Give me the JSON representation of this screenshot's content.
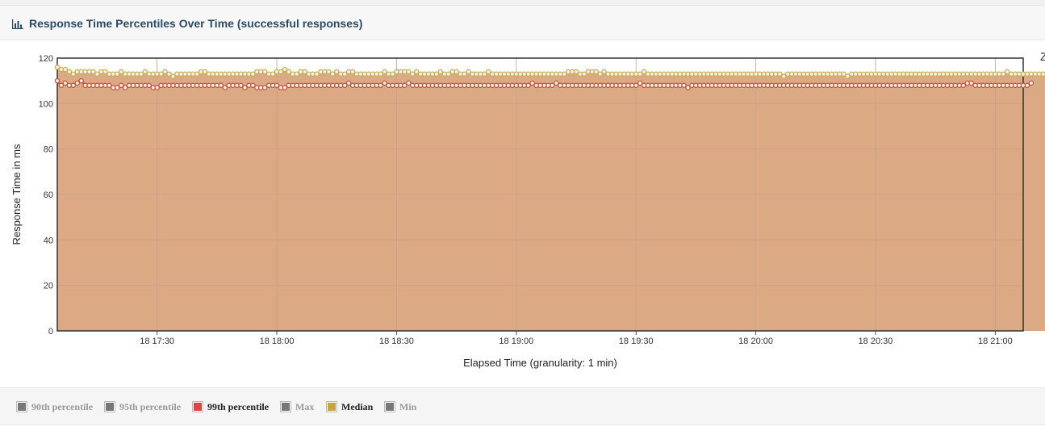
{
  "panel": {
    "title": "Response Time Percentiles Over Time (successful responses)",
    "icon": "bar-chart-icon",
    "cut_glyph": "Z"
  },
  "colors": {
    "plot_fill": "#dba983",
    "grid": "#c8a286",
    "line_99th": "#c9533f",
    "line_median": "#c9ae55",
    "marker_fill": "#f4f1ea"
  },
  "legend": [
    {
      "label": "90th percentile",
      "color": "#777777",
      "active": false
    },
    {
      "label": "95th percentile",
      "color": "#777777",
      "active": false
    },
    {
      "label": "99th percentile",
      "color": "#dd4444",
      "active": true
    },
    {
      "label": "Max",
      "color": "#777777",
      "active": false
    },
    {
      "label": "Median",
      "color": "#c9a43c",
      "active": true
    },
    {
      "label": "Min",
      "color": "#777777",
      "active": false
    }
  ],
  "chart_data": {
    "type": "area",
    "title": "",
    "xlabel": "Elapsed Time (granularity: 1 min)",
    "ylabel": "Response Time in ms",
    "ylim": [
      0,
      120
    ],
    "yticks": [
      0,
      20,
      40,
      60,
      80,
      100,
      120
    ],
    "xlim": [
      "17:05",
      "21:07"
    ],
    "xticks": [
      "18 17:30",
      "18 18:00",
      "18 18:30",
      "18 19:00",
      "18 19:30",
      "18 20:00",
      "18 20:30",
      "18 21:00"
    ],
    "granularity_minutes": 1,
    "start_time": "17:05",
    "grid": true,
    "series": [
      {
        "name": "99th percentile",
        "values": [
          110,
          108,
          109,
          108,
          108,
          109,
          110,
          108,
          108,
          108,
          108,
          108,
          108,
          108,
          107,
          107,
          108,
          107,
          108,
          108,
          108,
          108,
          108,
          108,
          107,
          107,
          108,
          108,
          108,
          108,
          108,
          108,
          108,
          108,
          108,
          108,
          108,
          108,
          108,
          108,
          108,
          108,
          107,
          108,
          108,
          108,
          108,
          107,
          108,
          108,
          107,
          107,
          107,
          108,
          108,
          108,
          107,
          107,
          108,
          108,
          108,
          108,
          108,
          108,
          108,
          108,
          108,
          108,
          108,
          108,
          108,
          108,
          108,
          109,
          108,
          108,
          108,
          108,
          108,
          108,
          108,
          108,
          109,
          108,
          108,
          108,
          108,
          108,
          109,
          108,
          108,
          108,
          108,
          108,
          108,
          108,
          108,
          108,
          108,
          108,
          108,
          108,
          108,
          108,
          108,
          108,
          108,
          108,
          108,
          108,
          108,
          108,
          108,
          108,
          108,
          108,
          108,
          108,
          108,
          109,
          108,
          108,
          108,
          108,
          108,
          109,
          108,
          108,
          108,
          108,
          108,
          108,
          108,
          108,
          108,
          108,
          108,
          108,
          108,
          108,
          108,
          108,
          108,
          108,
          108,
          108,
          109,
          108,
          108,
          108,
          108,
          108,
          108,
          108,
          108,
          108,
          108,
          108,
          107,
          108,
          108,
          108,
          108,
          108,
          108,
          108,
          108,
          108,
          108,
          108,
          108,
          108,
          108,
          108,
          108,
          108,
          108,
          108,
          108,
          108,
          108,
          108,
          108,
          108,
          108,
          108,
          108,
          108,
          108,
          108,
          108,
          108,
          108,
          108,
          108,
          108,
          108,
          108,
          108,
          108,
          108,
          108,
          108,
          108,
          108,
          108,
          108,
          108,
          108,
          108,
          108,
          108,
          108,
          108,
          108,
          108,
          108,
          108,
          108,
          108,
          108,
          108,
          108,
          108,
          108,
          108,
          108,
          108,
          109,
          109,
          108,
          108,
          108,
          108,
          108,
          108,
          108,
          108,
          108,
          108,
          108,
          108,
          108,
          108,
          109
        ]
      },
      {
        "name": "Median",
        "values": [
          116,
          115,
          115,
          114,
          113,
          114,
          114,
          114,
          114,
          114,
          113,
          114,
          114,
          113,
          113,
          113,
          114,
          113,
          113,
          113,
          113,
          113,
          114,
          113,
          113,
          113,
          113,
          114,
          113,
          112,
          113,
          113,
          113,
          113,
          113,
          113,
          114,
          114,
          113,
          113,
          113,
          113,
          113,
          113,
          113,
          113,
          113,
          113,
          113,
          113,
          114,
          114,
          114,
          113,
          113,
          114,
          114,
          115,
          114,
          113,
          113,
          114,
          114,
          113,
          113,
          113,
          114,
          114,
          114,
          113,
          114,
          113,
          113,
          114,
          114,
          113,
          113,
          113,
          113,
          113,
          113,
          113,
          114,
          113,
          113,
          114,
          114,
          114,
          114,
          113,
          114,
          113,
          113,
          113,
          113,
          113,
          114,
          113,
          113,
          114,
          114,
          113,
          113,
          114,
          113,
          113,
          113,
          113,
          114,
          113,
          113,
          113,
          113,
          113,
          113,
          113,
          113,
          113,
          113,
          113,
          113,
          113,
          113,
          113,
          113,
          113,
          113,
          113,
          114,
          114,
          114,
          113,
          113,
          114,
          114,
          114,
          113,
          114,
          113,
          113,
          113,
          113,
          113,
          113,
          113,
          113,
          113,
          114,
          113,
          113,
          113,
          113,
          113,
          113,
          113,
          113,
          113,
          113,
          113,
          113,
          113,
          113,
          113,
          113,
          113,
          113,
          113,
          113,
          113,
          113,
          113,
          113,
          113,
          113,
          113,
          113,
          113,
          113,
          113,
          113,
          113,
          113,
          112,
          113,
          113,
          113,
          113,
          113,
          113,
          113,
          113,
          113,
          113,
          113,
          113,
          113,
          113,
          113,
          112,
          113,
          113,
          113,
          113,
          113,
          113,
          113,
          113,
          113,
          113,
          113,
          113,
          113,
          113,
          113,
          113,
          113,
          113,
          113,
          113,
          113,
          113,
          113,
          113,
          113,
          113,
          113,
          113,
          113,
          113,
          113,
          113,
          113,
          113,
          113,
          113,
          113,
          113,
          113,
          114,
          113,
          113,
          113,
          113,
          113,
          113,
          113,
          113,
          113,
          113,
          113,
          113,
          113,
          113,
          113,
          114,
          113
        ]
      }
    ]
  }
}
